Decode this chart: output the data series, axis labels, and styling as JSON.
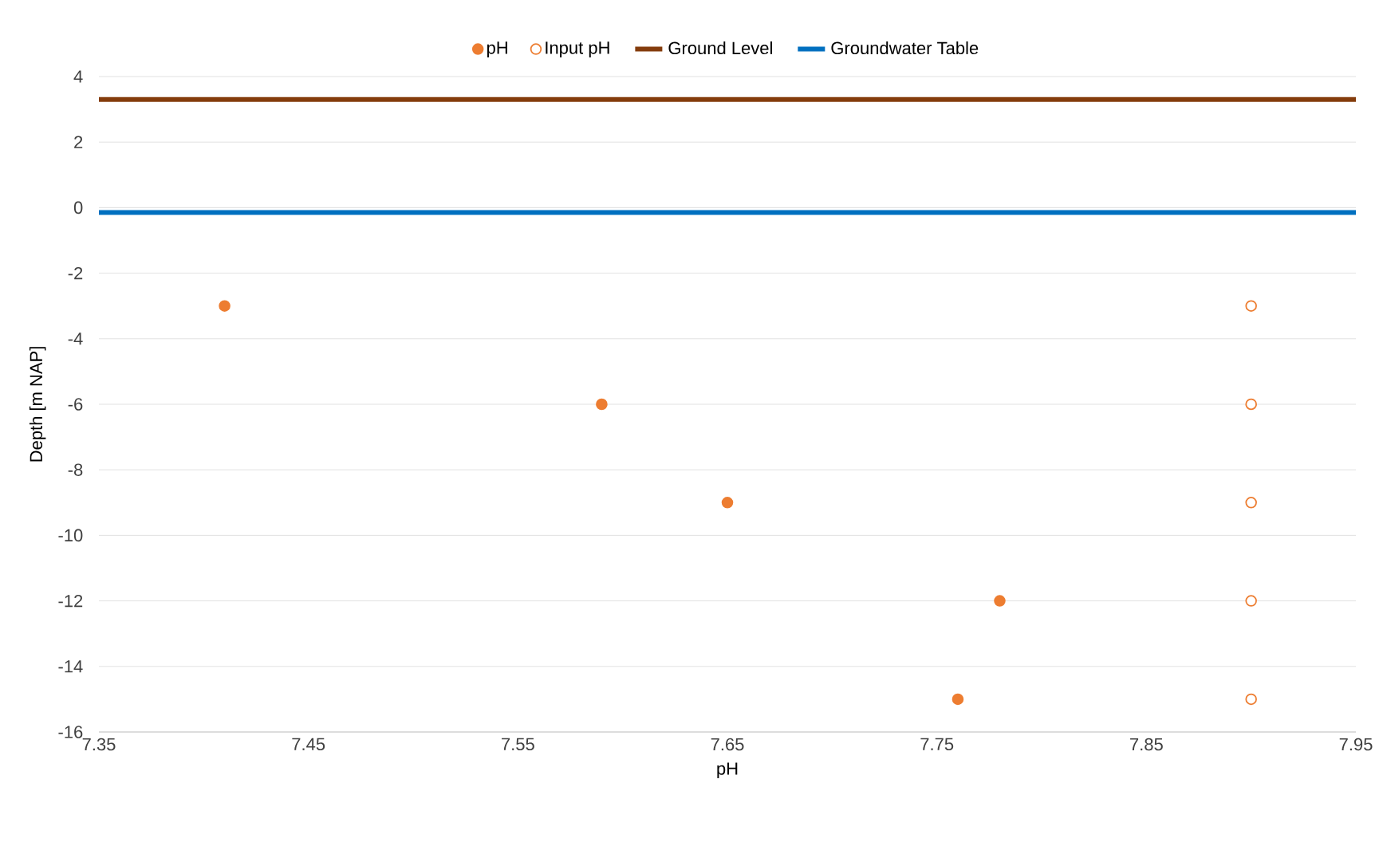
{
  "chart_data": {
    "type": "scatter",
    "xlabel": "pH",
    "ylabel": "Depth [m NAP]",
    "xlim": [
      7.35,
      7.95
    ],
    "xticks": [
      7.35,
      7.45,
      7.55,
      7.65,
      7.75,
      7.85,
      7.95
    ],
    "ylim": [
      -16,
      4
    ],
    "yticks": [
      -16,
      -14,
      -12,
      -10,
      -8,
      -6,
      -4,
      -2,
      0,
      2,
      4
    ],
    "grid": "y",
    "legend": "top",
    "series": [
      {
        "name": "pH",
        "marker": "circle",
        "color": "#ed7d31",
        "x": [
          7.41,
          7.59,
          7.65,
          7.78,
          7.76
        ],
        "values": [
          -3,
          -6,
          -9,
          -12,
          -15
        ]
      },
      {
        "name": "Input pH",
        "marker": "circle",
        "color": "#ed7d31",
        "x": [
          7.9,
          7.9,
          7.9,
          7.9,
          7.9
        ],
        "values": [
          -3,
          -6,
          -9,
          -12,
          -15
        ]
      },
      {
        "name": "Ground Level",
        "type": "line",
        "marker": "none",
        "color": "#843c0c",
        "x": [
          7.35,
          7.95
        ],
        "values": [
          3.3,
          3.3
        ]
      },
      {
        "name": "Groundwater Table",
        "type": "line",
        "marker": "none",
        "color": "#0070c0",
        "x": [
          7.35,
          7.95
        ],
        "values": [
          -0.15,
          -0.15
        ]
      }
    ]
  }
}
